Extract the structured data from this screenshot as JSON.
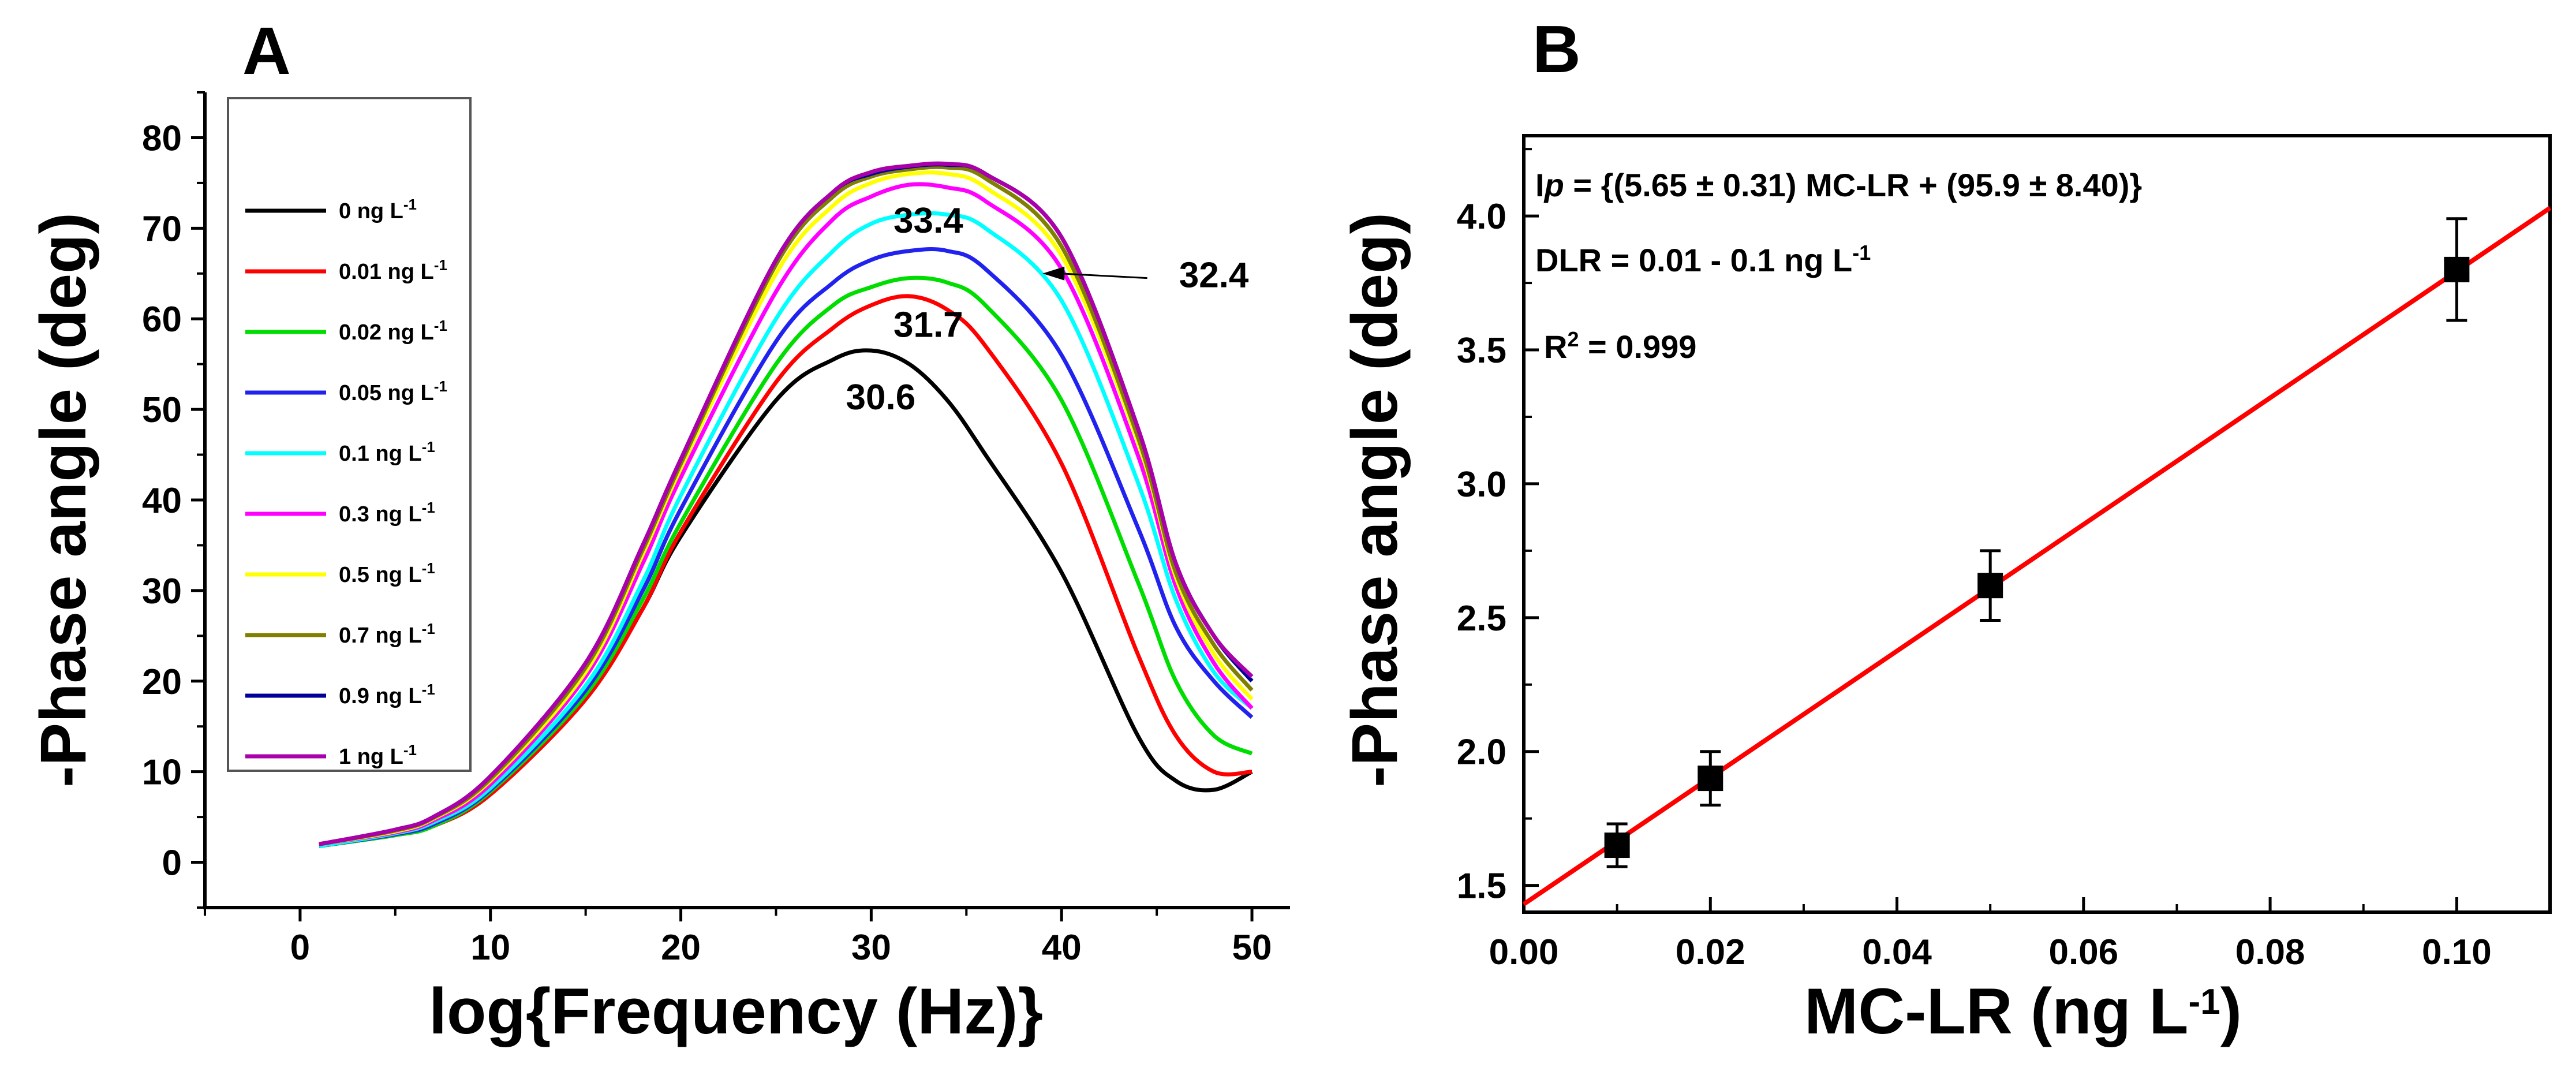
{
  "chart_data": [
    {
      "panel_label": "A",
      "type": "line",
      "xlabel": "log{Frequency (Hz)}",
      "ylabel": "-Phase angle (deg)",
      "xlim": [
        -5,
        52
      ],
      "ylim": [
        -5,
        85
      ],
      "xticks": [
        "0",
        "10",
        "20",
        "30",
        "40",
        "50"
      ],
      "yticks": [
        "0",
        "10",
        "20",
        "30",
        "40",
        "50",
        "60",
        "70",
        "80"
      ],
      "x": [
        1,
        5,
        7,
        10,
        15,
        18,
        20,
        25,
        28,
        30,
        32,
        34,
        36,
        40,
        44,
        46,
        48,
        50
      ],
      "series": [
        {
          "name": "0 ng L",
          "sup": "-1",
          "color": "#000000",
          "values": [
            1.8,
            3.0,
            4.0,
            7.5,
            18,
            28,
            36,
            51,
            55.5,
            56.5,
            55,
            51,
            45,
            32,
            14,
            9,
            8,
            10
          ]
        },
        {
          "name": "0.01 ng L",
          "sup": "-1",
          "color": "#ff0000",
          "values": [
            1.8,
            3.0,
            4.0,
            7.5,
            18,
            28,
            36.5,
            53,
            59,
            61.5,
            62.5,
            61,
            57,
            44,
            23,
            14,
            10,
            10
          ]
        },
        {
          "name": "0.02 ng L",
          "sup": "-1",
          "color": "#00dd00",
          "values": [
            1.8,
            3.0,
            4.0,
            7.8,
            18.5,
            29,
            37.5,
            55,
            61.5,
            63.5,
            64.5,
            64,
            61.5,
            51,
            31,
            20,
            14,
            12
          ]
        },
        {
          "name": "0.05 ng L",
          "sup": "-1",
          "color": "#2222ee",
          "values": [
            1.8,
            3.1,
            4.2,
            8,
            19,
            30,
            39,
            57.5,
            64,
            66.5,
            67.5,
            67.5,
            65.5,
            56,
            37,
            26,
            20,
            16
          ]
        },
        {
          "name": "0.1 ng L",
          "sup": "-1",
          "color": "#00ffff",
          "values": [
            1.8,
            3.2,
            4.4,
            8.2,
            19.5,
            31,
            40.5,
            60,
            67.5,
            70.5,
            71.5,
            71.5,
            70,
            62,
            42,
            29,
            21,
            17
          ]
        },
        {
          "name": "0.3 ng L",
          "sup": "-1",
          "color": "#ff00ff",
          "values": [
            2.0,
            3.3,
            4.6,
            8.6,
            20.5,
            33,
            42.5,
            63,
            71,
            73.5,
            74.8,
            74.5,
            73,
            65.5,
            45,
            30.5,
            22,
            17
          ]
        },
        {
          "name": "0.5 ng L",
          "sup": "-1",
          "color": "#ffff00",
          "values": [
            2.0,
            3.4,
            4.8,
            9,
            21,
            34,
            43.5,
            65,
            72.5,
            75,
            76,
            76,
            74.5,
            67,
            46.5,
            31.5,
            23,
            18
          ]
        },
        {
          "name": "0.7 ng L",
          "sup": "-1",
          "color": "#808000",
          "values": [
            2.0,
            3.5,
            4.9,
            9.2,
            21.5,
            34.5,
            44,
            66,
            73.5,
            75.7,
            76.5,
            76.7,
            75.5,
            68,
            47,
            32,
            24,
            19
          ]
        },
        {
          "name": "0.9 ng L",
          "sup": "-1",
          "color": "#000099",
          "values": [
            2.0,
            3.6,
            5.0,
            9.5,
            22,
            35,
            44.5,
            66.5,
            74,
            76,
            76.8,
            77,
            76,
            69,
            48,
            33,
            25,
            20
          ]
        },
        {
          "name": "1 ng L",
          "sup": "-1",
          "color": "#aa00aa",
          "values": [
            2.0,
            3.6,
            5.0,
            9.5,
            22,
            35,
            44.5,
            66.5,
            74,
            76.2,
            76.9,
            77.1,
            76,
            69,
            48,
            33,
            25,
            20.5
          ]
        }
      ],
      "annotations": [
        {
          "text": "33.4",
          "x": 33,
          "y": 69.5
        },
        {
          "text": "32.4",
          "x": 48,
          "y": 63.5
        },
        {
          "text": "31.7",
          "x": 33,
          "y": 58
        },
        {
          "text": "30.6",
          "x": 30.5,
          "y": 50
        }
      ],
      "arrow": {
        "from": [
          44.5,
          64.5
        ],
        "to": [
          39,
          65
        ]
      }
    },
    {
      "panel_label": "B",
      "type": "scatter",
      "xlabel": "MC-LR (ng L",
      "xlabel_sup": "-1",
      "xlabel_end": ")",
      "ylabel": "-Phase angle (deg)",
      "xlim": [
        0.0,
        0.11
      ],
      "ylim": [
        1.4,
        4.3
      ],
      "xticks": [
        "0.00",
        "0.02",
        "0.04",
        "0.06",
        "0.08",
        "0.10"
      ],
      "yticks": [
        "1.5",
        "2.0",
        "2.5",
        "3.0",
        "3.5",
        "4.0"
      ],
      "points": [
        {
          "x": 0.01,
          "y": 1.65,
          "err": 0.08
        },
        {
          "x": 0.02,
          "y": 1.9,
          "err": 0.1
        },
        {
          "x": 0.05,
          "y": 2.62,
          "err": 0.13
        },
        {
          "x": 0.1,
          "y": 3.8,
          "err": 0.19
        }
      ],
      "fit": {
        "color": "#ff0000",
        "x": [
          0.0,
          0.11
        ],
        "y": [
          1.43,
          4.03
        ]
      },
      "equation": {
        "lead": "I",
        "lead_italic": "p",
        "body": " = {(5.65 ± 0.31) MC-LR + (95.9 ± 8.40)}"
      },
      "dlr": {
        "text": "DLR = 0.01 - 0.1 ng L",
        "sup": "-1"
      },
      "r2": {
        "text_a": "R",
        "sup": "2",
        "text_b": " = 0.999"
      }
    }
  ]
}
